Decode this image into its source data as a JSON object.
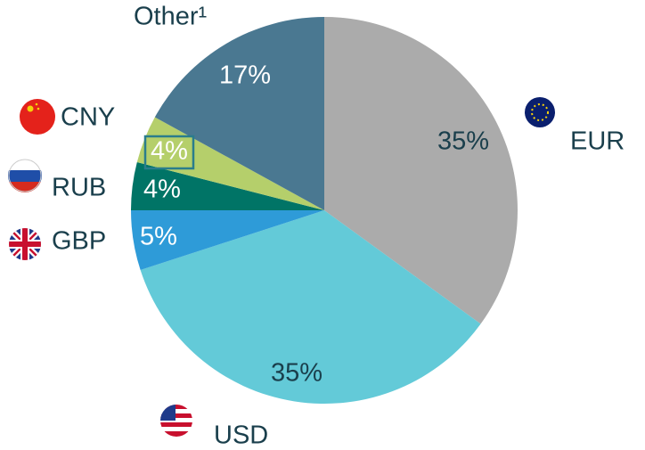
{
  "chart_data": {
    "type": "pie",
    "categories": [
      "EUR",
      "USD",
      "GBP",
      "RUB",
      "CNY",
      "Other¹"
    ],
    "values": [
      35,
      35,
      5,
      4,
      4,
      17
    ],
    "value_labels": [
      "35%",
      "35%",
      "5%",
      "4%",
      "4%",
      "17%"
    ],
    "colors": [
      "#ababab",
      "#63cad8",
      "#2e9bd8",
      "#007466",
      "#b5cf6b",
      "#4a7891"
    ]
  }
}
